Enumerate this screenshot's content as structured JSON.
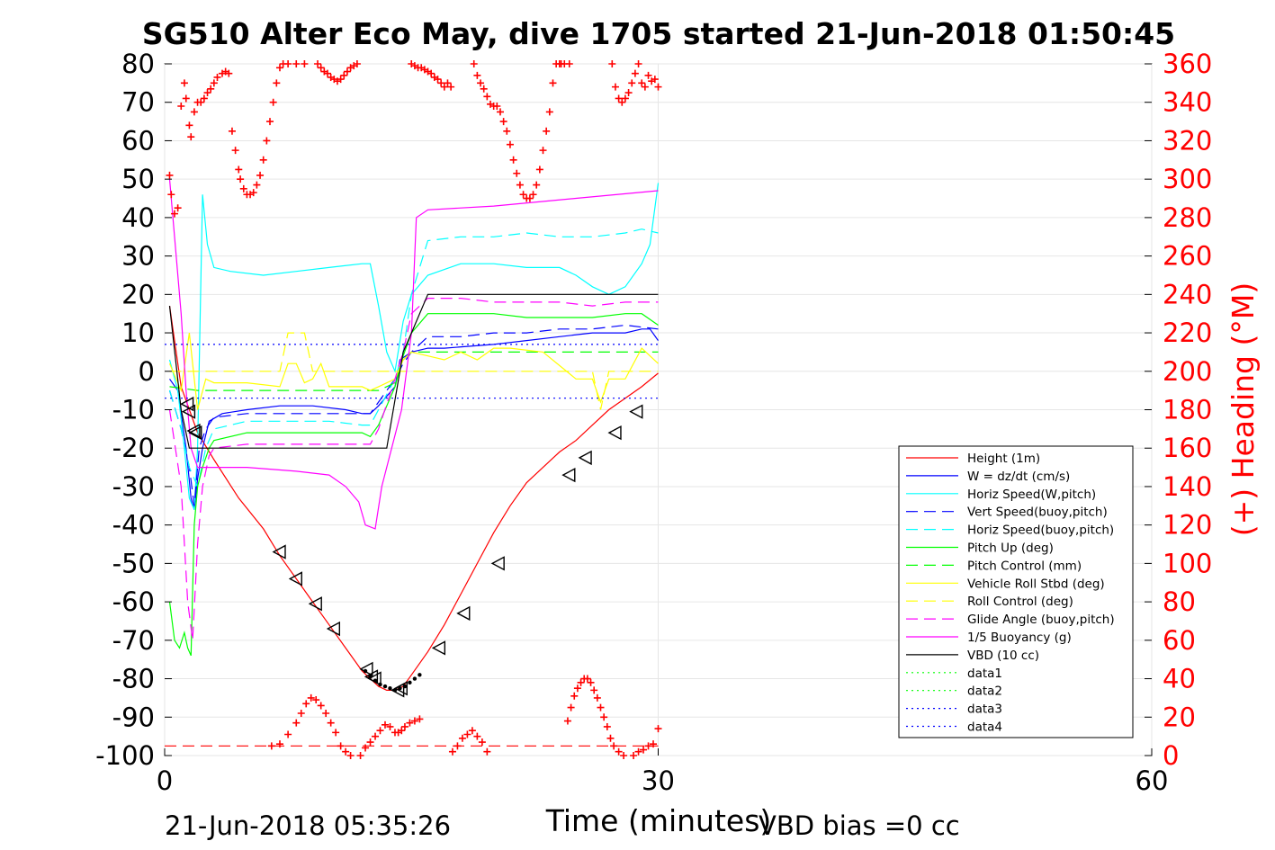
{
  "chart_data": {
    "type": "line",
    "title": "SG510 Alter Eco May, dive 1705 started 21-Jun-2018 01:50:45",
    "xlabel": "Time (minutes)",
    "ylabel": "",
    "y2label": "(+) Heading (°M)",
    "xlim": [
      0,
      60
    ],
    "ylim": [
      -100,
      80
    ],
    "y2lim": [
      0,
      360
    ],
    "xticks": [
      "0",
      "30",
      "60"
    ],
    "yticks": [
      "80",
      "70",
      "60",
      "50",
      "40",
      "30",
      "20",
      "10",
      "0",
      "-10",
      "-20",
      "-30",
      "-40",
      "-50",
      "-60",
      "-70",
      "-80",
      "-90",
      "-100"
    ],
    "y2ticks": [
      "360",
      "340",
      "320",
      "300",
      "280",
      "260",
      "240",
      "220",
      "200",
      "180",
      "160",
      "140",
      "120",
      "100",
      "80",
      "60",
      "40",
      "20",
      "0"
    ],
    "grid": true,
    "legend_position": "bottom-right",
    "footer_left": "21-Jun-2018 05:35:26",
    "footer_right": "VBD bias =0 cc",
    "colors": {
      "red": "#ff0000",
      "blue": "#0000ff",
      "cyan": "#00ffff",
      "green": "#00ff00",
      "yellow": "#ffff00",
      "magenta": "#ff00ff",
      "black": "#000000"
    },
    "series": [
      {
        "name": "Height (1m)",
        "color": "#ff0000",
        "style": "solid",
        "x": [
          0.3,
          1,
          2,
          3,
          4.5,
          6,
          7,
          8,
          9,
          10,
          11,
          12,
          13,
          13.5,
          14,
          14.5,
          15,
          16,
          17,
          18,
          19,
          20,
          21,
          22,
          23,
          24,
          25,
          26,
          27,
          28,
          29,
          30
        ],
        "y": [
          17,
          -4,
          -16,
          -23,
          -33,
          -41,
          -48,
          -54,
          -60,
          -66,
          -72,
          -78,
          -82,
          -83,
          -83,
          -82,
          -79,
          -73,
          -66,
          -58,
          -50,
          -42,
          -35,
          -29,
          -25,
          -21,
          -18,
          -14,
          -10,
          -7,
          -4,
          -0.5
        ]
      },
      {
        "name": "W = dz/dt (cm/s)",
        "color": "#0000ff",
        "style": "solid",
        "x": [
          0.3,
          0.8,
          1.3,
          1.6,
          1.8,
          2.0,
          2.3,
          2.7,
          3.5,
          5,
          7,
          9,
          11,
          12,
          12.5,
          13,
          14,
          14.3,
          15,
          16,
          17,
          20,
          22,
          24,
          26,
          28,
          29,
          29.5,
          30
        ],
        "y": [
          -2,
          -5,
          -20,
          -33,
          -36,
          -28,
          -20,
          -13,
          -11,
          -10,
          -9,
          -9,
          -10,
          -11,
          -11,
          -9,
          -4,
          3,
          5,
          6,
          6,
          7,
          8,
          9,
          10,
          10,
          11,
          11,
          8
        ]
      },
      {
        "name": "Horiz Speed(W,pitch)",
        "color": "#00ffff",
        "style": "solid",
        "x": [
          0.3,
          0.8,
          1.2,
          1.5,
          1.8,
          2.0,
          2.3,
          2.6,
          3,
          4,
          6,
          8,
          10,
          12,
          12.5,
          13,
          13.5,
          14,
          14.5,
          15,
          16,
          18,
          20,
          22,
          24,
          25,
          26,
          27,
          28,
          29,
          29.5,
          30
        ],
        "y": [
          3,
          -5,
          -20,
          -33,
          -36,
          -20,
          46,
          33,
          27,
          26,
          25,
          26,
          27,
          28,
          28,
          17,
          5,
          0,
          13,
          20,
          25,
          28,
          28,
          27,
          27,
          25,
          22,
          20,
          22,
          28,
          33,
          49
        ]
      },
      {
        "name": "Vert Speed(buoy,pitch)",
        "color": "#0000ff",
        "style": "dashed",
        "x": [
          0.3,
          1,
          1.5,
          1.8,
          2.1,
          2.5,
          3,
          5,
          7,
          10,
          12,
          12.5,
          13,
          14,
          14.5,
          15,
          16,
          18,
          20,
          22,
          24,
          26,
          28,
          30
        ],
        "y": [
          -5,
          -15,
          -25,
          -35,
          -20,
          -15,
          -12,
          -11,
          -11,
          -11,
          -11,
          -11,
          -8,
          -2,
          2,
          5,
          9,
          9,
          10,
          10,
          11,
          11,
          12,
          11
        ]
      },
      {
        "name": "Horiz Speed(buoy,pitch)",
        "color": "#00ffff",
        "style": "dashed",
        "x": [
          0.3,
          1,
          1.5,
          2,
          2.5,
          3,
          5,
          7,
          10,
          12,
          12.5,
          13,
          14,
          14.5,
          15,
          16,
          18,
          20,
          22,
          24,
          26,
          28,
          29,
          30
        ],
        "y": [
          -5,
          -15,
          -25,
          -30,
          -20,
          -15,
          -13,
          -13,
          -13,
          -14,
          -14,
          -10,
          -2,
          5,
          20,
          34,
          35,
          35,
          36,
          35,
          35,
          36,
          37,
          36
        ]
      },
      {
        "name": "Pitch Up (deg)",
        "color": "#00ff00",
        "style": "solid",
        "x": [
          0.3,
          0.6,
          0.9,
          1.2,
          1.4,
          1.6,
          1.8,
          2.0,
          2.3,
          2.7,
          3,
          5,
          7,
          10,
          12,
          12.5,
          13,
          14,
          14.5,
          15,
          16,
          18,
          20,
          22,
          24,
          26,
          28,
          29,
          30
        ],
        "y": [
          -60,
          -70,
          -72,
          -68,
          -72,
          -74,
          -40,
          -30,
          -25,
          -20,
          -18,
          -16,
          -16,
          -16,
          -16,
          -17,
          -14,
          -4,
          4,
          10,
          15,
          15,
          15,
          14,
          14,
          14,
          15,
          15,
          12
        ]
      },
      {
        "name": "Pitch Control (mm)",
        "color": "#00ff00",
        "style": "dashed",
        "x": [
          0.3,
          2,
          3,
          6,
          9,
          12,
          13,
          14,
          14.5,
          15,
          18,
          21,
          24,
          27,
          30
        ],
        "y": [
          -4,
          -5,
          -5,
          -5,
          -5,
          -5,
          -5,
          -3,
          3,
          5,
          5,
          5,
          5,
          5,
          5
        ]
      },
      {
        "name": "Vehicle Roll Stbd (deg)",
        "color": "#ffff00",
        "style": "solid",
        "x": [
          0.3,
          1,
          1.5,
          2,
          2.5,
          3,
          5,
          7,
          7.5,
          8,
          8.5,
          9,
          9.5,
          10,
          11,
          12,
          12.5,
          13,
          14,
          14.5,
          15,
          16,
          17,
          18,
          19,
          20,
          21,
          23,
          25,
          26,
          26.5,
          27,
          28,
          29,
          30
        ],
        "y": [
          2,
          -5,
          10,
          -10,
          -2,
          -3,
          -3,
          -4,
          2,
          2,
          -3,
          -2,
          2,
          -4,
          -4,
          -4,
          -5,
          -4,
          -2,
          3,
          5,
          4,
          3,
          5,
          3,
          6,
          6,
          5,
          -2,
          -2,
          -8,
          -2,
          -2,
          6,
          2
        ]
      },
      {
        "name": "Roll Control (deg)",
        "color": "#ffff00",
        "style": "dashed",
        "x": [
          0.3,
          2,
          5,
          7,
          7.5,
          8,
          8.5,
          9,
          10,
          12,
          13,
          14,
          15,
          18,
          20,
          21,
          23,
          25,
          26,
          26.5,
          27,
          28,
          30
        ],
        "y": [
          0,
          0,
          0,
          0,
          10,
          10,
          10,
          0,
          0,
          0,
          0,
          0,
          0,
          0,
          0,
          0,
          0,
          0,
          0,
          -10,
          0,
          0,
          0
        ]
      },
      {
        "name": "Glide Angle (buoy,pitch)",
        "color": "#ff00ff",
        "style": "dashed",
        "x": [
          0.3,
          1,
          1.4,
          1.7,
          2.0,
          2.3,
          2.7,
          3,
          5,
          7,
          10,
          12,
          12.5,
          13,
          14,
          14.5,
          15,
          16,
          18,
          20,
          22,
          24,
          26,
          28,
          30
        ],
        "y": [
          -10,
          -30,
          -60,
          -70,
          -45,
          -30,
          -22,
          -20,
          -19,
          -19,
          -19,
          -19,
          -19,
          -15,
          -2,
          5,
          15,
          19,
          19,
          18,
          18,
          18,
          17,
          18,
          18
        ]
      },
      {
        "name": "1/5 Buoyancy (g)",
        "color": "#ff00ff",
        "style": "solid",
        "x": [
          0.3,
          0.6,
          1,
          1.3,
          1.6,
          2,
          2.5,
          3,
          5,
          8,
          10,
          11,
          11.8,
          12.2,
          12.8,
          13.2,
          13.8,
          14.4,
          15,
          15.3,
          16,
          20,
          25,
          30
        ],
        "y": [
          50,
          35,
          15,
          -5,
          -20,
          -25,
          -25,
          -25,
          -25,
          -26,
          -27,
          -30,
          -34,
          -40,
          -41,
          -30,
          -20,
          -10,
          10,
          40,
          42,
          43,
          45,
          47
        ]
      },
      {
        "name": "VBD (10 cc)",
        "color": "#000000",
        "style": "solid",
        "x": [
          0.3,
          1,
          1.5,
          2,
          3,
          5,
          8,
          10,
          12,
          13,
          13.5,
          14.5,
          15,
          16,
          18,
          20,
          22,
          24,
          26,
          28,
          30
        ],
        "y": [
          17,
          -10,
          -20,
          -20,
          -20,
          -20,
          -20,
          -20,
          -20,
          -20,
          -20,
          5,
          10,
          20,
          20,
          20,
          20,
          20,
          20,
          20,
          20
        ]
      },
      {
        "name": "data1",
        "color": "#00ff00",
        "style": "dotted",
        "x": [],
        "y": []
      },
      {
        "name": "data2",
        "color": "#00ff00",
        "style": "dotted",
        "x": [],
        "y": []
      },
      {
        "name": "data3",
        "color": "#0000ff",
        "style": "dotted",
        "x": [
          0,
          30
        ],
        "y": [
          7,
          7
        ]
      },
      {
        "name": "data4",
        "color": "#0000ff",
        "style": "dotted",
        "x": [
          0,
          30
        ],
        "y": [
          -7,
          -7
        ]
      }
    ],
    "triangles": {
      "x": [
        1.4,
        1.5,
        1.8,
        1.9,
        7,
        8,
        9.2,
        10.3,
        12.3,
        12.6,
        12.8,
        14.2,
        14.4,
        16.7,
        18.2,
        20.3,
        24.6,
        25.6,
        27.4,
        28.7
      ],
      "y": [
        -8.5,
        -10.5,
        -15.5,
        -16,
        -47,
        -54,
        -60.5,
        -67,
        -77.5,
        -79.5,
        -80,
        -83,
        -82.5,
        -72,
        -63,
        -50,
        -27,
        -22.5,
        -16,
        -10.5
      ]
    },
    "depth_dots": {
      "x": [
        12.2,
        12.5,
        12.8,
        13.1,
        13.4,
        13.7,
        14.0,
        14.3,
        14.6,
        14.9,
        15.2,
        15.5
      ],
      "y": [
        -78,
        -79.5,
        -80.5,
        -81.5,
        -82,
        -82.5,
        -83,
        -82.5,
        -82,
        -81,
        -80,
        -79
      ]
    },
    "heading": {
      "x": [
        0.3,
        0.4,
        0.6,
        0.8,
        1,
        1.2,
        1.3,
        1.5,
        1.6,
        1.8,
        2,
        2.2,
        2.4,
        2.6,
        2.8,
        3,
        3.2,
        3.5,
        3.7,
        3.9,
        4.1,
        4.3,
        4.5,
        4.6,
        4.8,
        5,
        5.2,
        5.4,
        5.6,
        5.8,
        6,
        6.2,
        6.4,
        6.6,
        6.8,
        7,
        7.2,
        7.5,
        8,
        8.5,
        9.3,
        9.5,
        9.7,
        9.9,
        10.1,
        10.3,
        10.5,
        10.7,
        10.9,
        11.1,
        11.3,
        11.5,
        11.7,
        15,
        15.2,
        15.4,
        15.6,
        15.8,
        16,
        16.2,
        16.4,
        16.6,
        16.8,
        17,
        17.2,
        17.4,
        18.8,
        19,
        19.2,
        19.4,
        19.6,
        19.8,
        20,
        20.2,
        20.4,
        20.6,
        20.8,
        21,
        21.2,
        21.4,
        21.6,
        21.8,
        22,
        22.2,
        22.4,
        22.6,
        22.8,
        23,
        23.2,
        23.4,
        23.6,
        23.8,
        24,
        24.1,
        24.3,
        24.6,
        27.2,
        27.4,
        27.6,
        27.8,
        28,
        28.2,
        28.4,
        28.6,
        28.8,
        29,
        29.2,
        29.4,
        29.6,
        29.8,
        30
      ],
      "y": [
        302,
        292,
        282,
        285,
        338,
        350,
        342,
        328,
        322,
        335,
        340,
        340,
        342,
        345,
        347,
        350,
        353,
        355,
        356,
        355,
        325,
        315,
        305,
        300,
        295,
        292,
        292,
        293,
        297,
        302,
        310,
        320,
        330,
        340,
        350,
        358,
        360,
        360,
        360,
        360,
        360,
        358,
        356,
        355,
        353,
        352,
        351,
        352,
        354,
        356,
        358,
        359,
        360,
        360,
        359,
        358,
        358,
        357,
        356,
        355,
        353,
        352,
        350,
        348,
        350,
        348,
        360,
        354,
        350,
        347,
        343,
        339,
        338,
        338,
        335,
        330,
        325,
        318,
        310,
        303,
        297,
        292,
        290,
        290,
        292,
        297,
        305,
        315,
        325,
        335,
        350,
        360,
        360,
        360,
        360,
        360,
        360,
        348,
        342,
        340,
        342,
        345,
        350,
        355,
        360,
        350,
        348,
        354,
        351,
        352,
        348
      ]
    },
    "heading_low": {
      "x": [
        6.5,
        7,
        7.5,
        8,
        8.3,
        8.6,
        8.9,
        9.2,
        9.5,
        9.8,
        10.1,
        10.4,
        10.7,
        11,
        11.3,
        11.6,
        11.9,
        12.2,
        12.5,
        12.8,
        13.1,
        13.4,
        13.7,
        14.0,
        14.2,
        14.4,
        14.6,
        14.9,
        15.2,
        15.5,
        17.2,
        17.5,
        17.8,
        18.1,
        18.4,
        18.7,
        19,
        19.3,
        19.6,
        24.5,
        24.7,
        24.9,
        25.1,
        25.3,
        25.5,
        25.7,
        25.9,
        26.1,
        26.3,
        26.5,
        26.7,
        26.9,
        27.1,
        27.3,
        27.6,
        27.9,
        28.2,
        28.5,
        28.8,
        29.1,
        29.4,
        29.7,
        30
      ],
      "y": [
        5,
        6,
        11,
        17,
        22,
        27,
        30,
        29,
        26,
        22,
        17,
        12,
        5,
        2,
        0,
        -2,
        0,
        4,
        7,
        10,
        13,
        16,
        15,
        12,
        12,
        13,
        15,
        17,
        18,
        19,
        -1,
        2,
        5,
        9,
        11,
        13,
        10,
        7,
        2,
        18,
        25,
        31,
        35,
        38,
        40,
        40,
        38,
        34,
        30,
        25,
        20,
        15,
        9,
        5,
        2,
        0,
        -1,
        0,
        2,
        3,
        5,
        6,
        14
      ]
    }
  }
}
